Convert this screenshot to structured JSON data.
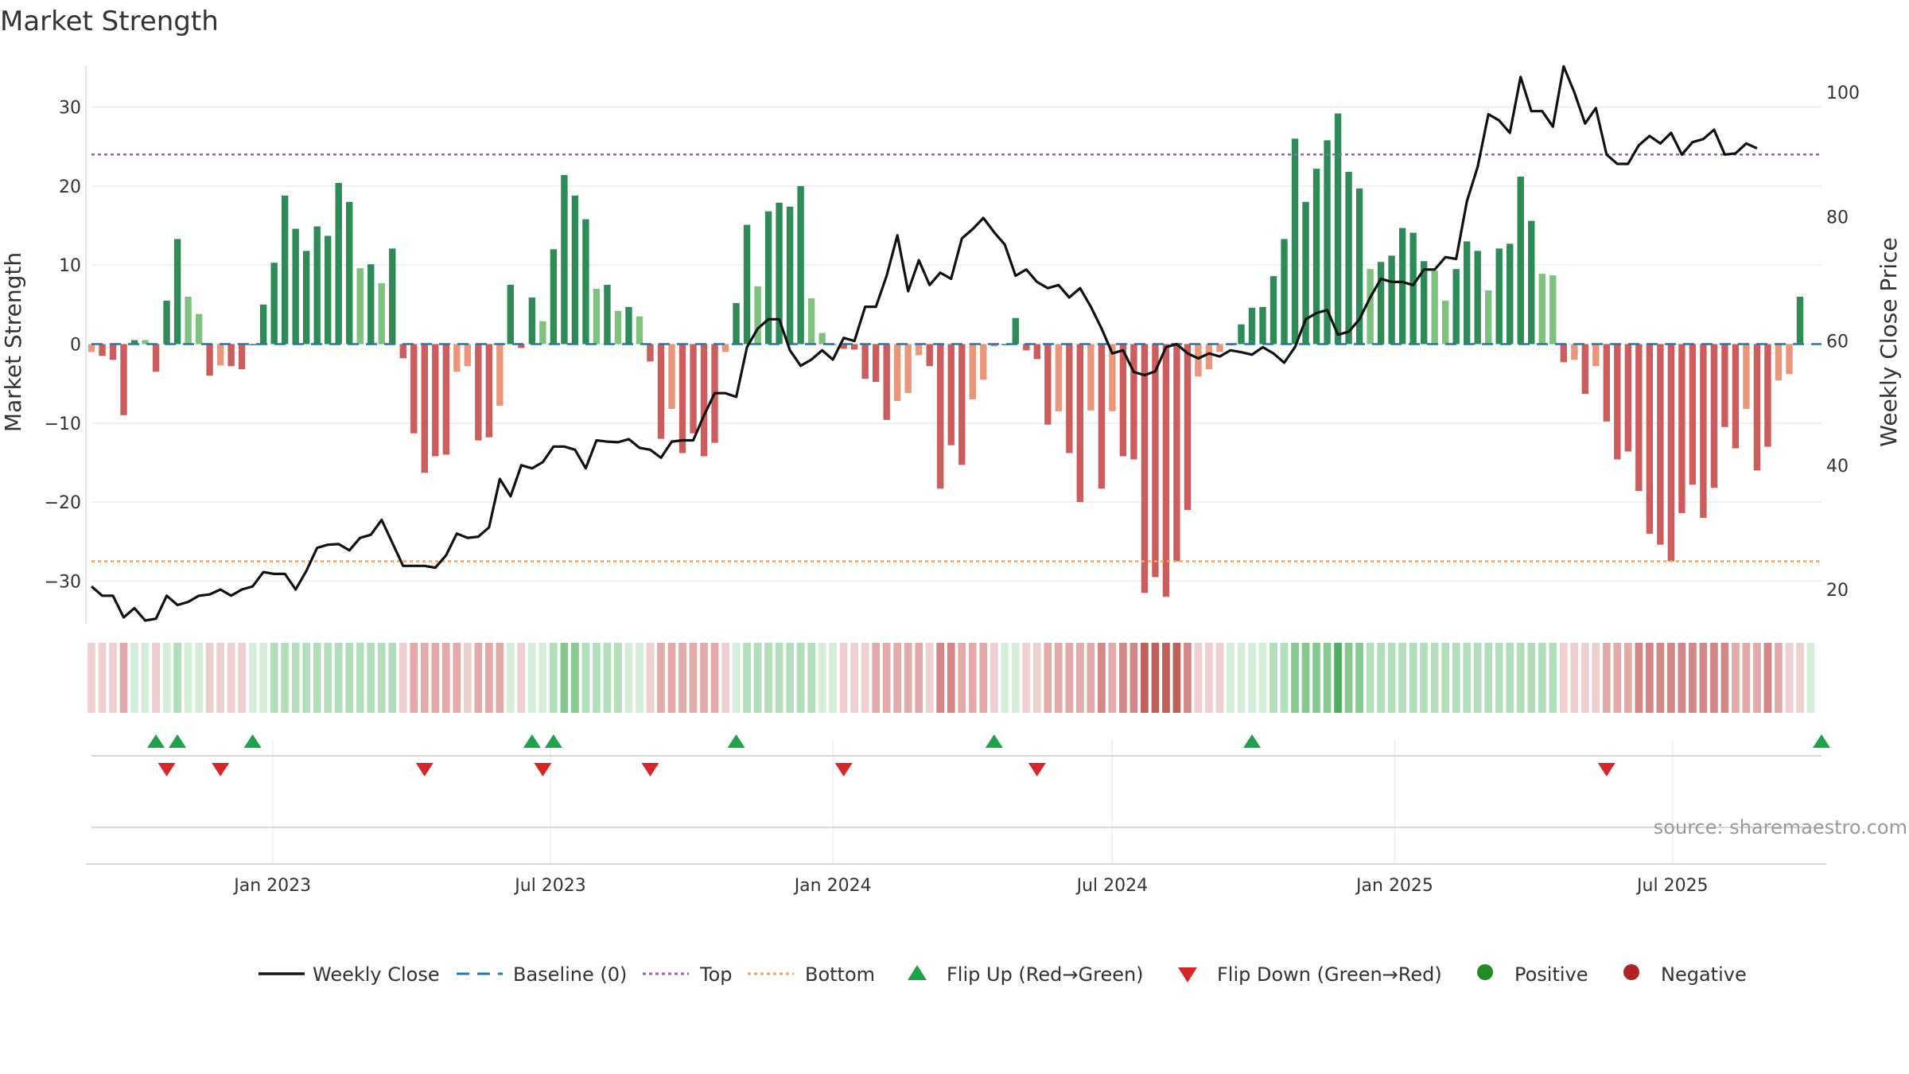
{
  "chart_data": {
    "type": "bar",
    "title": "Market Strength",
    "ylabel": "Market Strength",
    "y2label": "Weekly Close Price",
    "ylim": [
      -35,
      35
    ],
    "y2lim": [
      15,
      104
    ],
    "yticks": [
      30,
      20,
      10,
      0,
      -10,
      -20,
      -30
    ],
    "yticklabels": [
      "30",
      "20",
      "10",
      "0",
      "−10",
      "−20",
      "−30"
    ],
    "y2ticks": [
      100,
      80,
      60,
      40,
      20
    ],
    "y2ticklabels": [
      "100",
      "80",
      "60",
      "40",
      "20"
    ],
    "x_start": "2022-09-05",
    "x_end": "2025-10-06",
    "xticks": [
      {
        "date": "2023-01-01",
        "label": "Jan 2023"
      },
      {
        "date": "2023-07-01",
        "label": "Jul 2023"
      },
      {
        "date": "2024-01-01",
        "label": "Jan 2024"
      },
      {
        "date": "2024-07-01",
        "label": "Jul 2024"
      },
      {
        "date": "2025-01-01",
        "label": "Jan 2025"
      },
      {
        "date": "2025-07-01",
        "label": "Jul 2025"
      }
    ],
    "top_level": 24,
    "bottom_level": -27.5,
    "grid": true,
    "legend_position": "bottom-center",
    "colors": {
      "pos_strong": "#2e8b57",
      "pos_weak": "#7fc17f",
      "neg_strong": "#cd5c5c",
      "neg_weak": "#e9967a",
      "close": "#111111",
      "baseline": "#1f77b4",
      "top": "#9467bd",
      "bottom": "#f4a460",
      "flip_up": "#1fa34a",
      "flip_down": "#d62728",
      "positive": "#228b22",
      "negative": "#b22222"
    },
    "series": [
      {
        "name": "Market Strength",
        "start": "2022-09-05",
        "step_days": 7,
        "values": [
          -1,
          -1.5,
          -2,
          -9,
          0.5,
          0.5,
          -3.5,
          5.5,
          13.3,
          6,
          3.8,
          -4,
          -2.7,
          -2.8,
          -3.2,
          0,
          5,
          10.3,
          18.8,
          14.6,
          11.8,
          14.9,
          13.7,
          20.4,
          18,
          9.6,
          10.1,
          7.7,
          12.1,
          -1.8,
          -11.3,
          -16.3,
          -14.2,
          -14,
          -3.5,
          -2.8,
          -12.2,
          -11.8,
          -7.8,
          7.5,
          -0.5,
          5.9,
          2.9,
          12,
          21.4,
          18.8,
          15.8,
          7,
          7.5,
          4.2,
          4.7,
          3.5,
          -2.2,
          -12,
          -8.2,
          -13.8,
          -11.3,
          -14.2,
          -12.5,
          -1,
          5.2,
          15.1,
          7.3,
          16.8,
          17.9,
          17.4,
          20,
          5.8,
          1.4,
          0,
          -0.6,
          -0.7,
          -4.4,
          -4.8,
          -9.6,
          -7.2,
          -6.2,
          -1.4,
          -2.8,
          -18.3,
          -12.8,
          -15.3,
          -7,
          -4.5,
          -0.3,
          0,
          3.3,
          -0.8,
          -1.9,
          -10.2,
          -8.5,
          -13.8,
          -20,
          -8.4,
          -18.3,
          -8.5,
          -14.2,
          -14.6,
          -31.5,
          -29.5,
          -32,
          -27.5,
          -21,
          -4.1,
          -3.2,
          -1,
          0,
          2.5,
          4.6,
          4.7,
          8.6,
          13.3,
          26,
          18,
          22.2,
          25.8,
          29.2,
          21.8,
          19.7,
          9.5,
          10.4,
          11.2,
          14.7,
          14.1,
          10.5,
          9.3,
          5.5,
          9.5,
          13,
          11.8,
          6.8,
          12.1,
          12.7,
          21.2,
          15.6,
          8.9,
          8.7,
          -2.3,
          -2,
          -6.3,
          -2.8,
          -9.8,
          -14.6,
          -13.6,
          -18.6,
          -24,
          -25.4,
          -27.5,
          -21.4,
          -17.8,
          -22,
          -18.2,
          -10.5,
          -13.2,
          -8.2,
          -16,
          -13,
          -4.6,
          -3.8,
          6
        ]
      },
      {
        "name": "Weekly Close",
        "start": "2022-09-05",
        "step_days": 7,
        "values": [
          20.5,
          19,
          19,
          15.5,
          17,
          15,
          15.3,
          19,
          17.5,
          18,
          19,
          19.2,
          20,
          19,
          20,
          20.5,
          22.8,
          22.5,
          22.5,
          20,
          23,
          26.7,
          27.2,
          27.3,
          26.3,
          28.3,
          28.8,
          31.2,
          27.5,
          23.8,
          23.8,
          23.8,
          23.5,
          25.5,
          29,
          28.3,
          28.5,
          30,
          37.8,
          35,
          40,
          39.5,
          40.5,
          43,
          43,
          42.5,
          39.5,
          44,
          43.8,
          43.7,
          44.2,
          42.8,
          42.5,
          41.2,
          43.8,
          44,
          44,
          48,
          51.6,
          51.6,
          51,
          59,
          62,
          63.5,
          63.5,
          58.5,
          56,
          57,
          58.5,
          57,
          60.5,
          60,
          65.5,
          65.5,
          70.5,
          77,
          68,
          73,
          69,
          71,
          70,
          76.5,
          78,
          79.8,
          77.5,
          75.5,
          70.5,
          71.5,
          69.5,
          68.5,
          69,
          67,
          68.5,
          65.5,
          62,
          58,
          58.5,
          55,
          54.5,
          55.1,
          59,
          59.5,
          58,
          57.2,
          58,
          57.5,
          58.5,
          58.2,
          57.8,
          59,
          58,
          56.5,
          59,
          63.5,
          64.5,
          65,
          61,
          61.5,
          63.5,
          67,
          70,
          69.5,
          69.5,
          69,
          71.5,
          71.5,
          73.5,
          73.2,
          82.5,
          88,
          96.5,
          95.5,
          93.5,
          102.5,
          97,
          97,
          94.5,
          104.2,
          100,
          95,
          97.5,
          90,
          88.5,
          88.5,
          91.5,
          93,
          91.8,
          93.5,
          90,
          92,
          92.5,
          94,
          90,
          90.2,
          91.8,
          91
        ]
      }
    ],
    "state_strip": {
      "start": "2022-09-05",
      "step_days": 7,
      "levels": [
        -1,
        -1,
        -1,
        -2,
        1,
        1,
        -1,
        1,
        2,
        1,
        1,
        -1,
        -1,
        -1,
        -1,
        1,
        1,
        2,
        2,
        2,
        2,
        2,
        2,
        2,
        2,
        2,
        2,
        2,
        2,
        -1,
        -2,
        -2,
        -2,
        -2,
        -2,
        -1,
        -2,
        -2,
        -2,
        1,
        -1,
        1,
        1,
        2,
        3,
        3,
        2,
        2,
        2,
        2,
        1,
        1,
        -1,
        -2,
        -2,
        -2,
        -2,
        -2,
        -2,
        -1,
        1,
        2,
        2,
        2,
        2,
        2,
        2,
        2,
        1,
        1,
        -1,
        -1,
        -1,
        -2,
        -2,
        -2,
        -2,
        -2,
        -1,
        -3,
        -3,
        -2,
        -2,
        -2,
        -1,
        1,
        1,
        -1,
        -1,
        -2,
        -2,
        -2,
        -2,
        -2,
        -3,
        -2,
        -3,
        -3,
        -4,
        -4,
        -4,
        -4,
        -3,
        -1,
        -1,
        -1,
        1,
        1,
        1,
        1,
        2,
        2,
        3,
        3,
        3,
        3,
        4,
        3,
        3,
        2,
        2,
        2,
        2,
        2,
        2,
        2,
        2,
        2,
        2,
        2,
        2,
        2,
        2,
        2,
        2,
        2,
        2,
        -1,
        -1,
        -1,
        -1,
        -2,
        -2,
        -2,
        -3,
        -3,
        -3,
        -3,
        -3,
        -3,
        -3,
        -3,
        -3,
        -2,
        -2,
        -2,
        -3,
        -2,
        -1,
        -1,
        1
      ]
    },
    "flips_up": [
      "2022-10-17",
      "2022-10-31",
      "2022-12-19",
      "2023-06-19",
      "2023-07-03",
      "2023-10-30",
      "2024-04-15",
      "2024-09-30",
      "2025-10-06"
    ],
    "flips_down": [
      "2022-10-24",
      "2022-11-28",
      "2023-04-10",
      "2023-06-26",
      "2023-09-04",
      "2024-01-08",
      "2024-05-13",
      "2025-05-19"
    ],
    "source": "source: sharemaestro.com",
    "legend": [
      {
        "key": "close",
        "label": "Weekly Close",
        "icon": "solid-line-icon"
      },
      {
        "key": "baseline",
        "label": "Baseline (0)",
        "icon": "dashed-line-icon"
      },
      {
        "key": "top",
        "label": "Top",
        "icon": "dotted-line-icon"
      },
      {
        "key": "bottom",
        "label": "Bottom",
        "icon": "dotted-line-icon"
      },
      {
        "key": "flip_up",
        "label": "Flip Up (Red→Green)",
        "icon": "triangle-up-icon"
      },
      {
        "key": "flip_down",
        "label": "Flip Down (Green→Red)",
        "icon": "triangle-down-icon"
      },
      {
        "key": "positive",
        "label": "Positive",
        "icon": "circle-icon"
      },
      {
        "key": "negative",
        "label": "Negative",
        "icon": "circle-icon"
      }
    ]
  }
}
